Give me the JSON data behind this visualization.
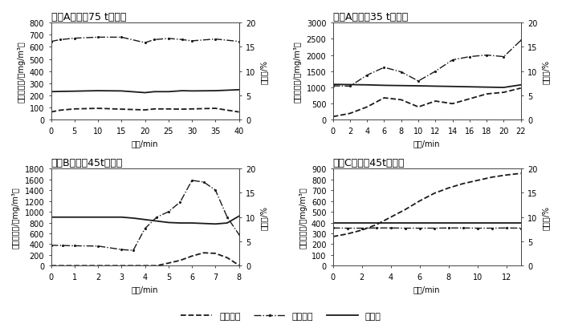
{
  "subplots": [
    {
      "title": "糖厂A数据（75 t锅炉）",
      "xlabel": "时间/min",
      "ylabel_left": "污染物浓度/（mg/m³）",
      "ylabel_right": "含氧量/%",
      "xlim": [
        0,
        40
      ],
      "ylim_left": [
        0,
        800
      ],
      "ylim_right": [
        0,
        20
      ],
      "yticks_left": [
        0,
        100,
        200,
        300,
        400,
        500,
        600,
        700,
        800
      ],
      "yticks_right": [
        0,
        5,
        10,
        15,
        20
      ],
      "xticks": [
        0,
        5,
        10,
        15,
        20,
        25,
        30,
        35,
        40
      ],
      "SO2_x": [
        0,
        2,
        5,
        10,
        15,
        20,
        22,
        25,
        28,
        30,
        35,
        40
      ],
      "SO2_y": [
        65,
        80,
        90,
        95,
        88,
        82,
        90,
        90,
        88,
        90,
        95,
        65
      ],
      "CO_x": [
        0,
        2,
        5,
        10,
        15,
        20,
        22,
        25,
        28,
        30,
        35,
        40
      ],
      "CO_y": [
        645,
        660,
        672,
        680,
        680,
        635,
        660,
        670,
        660,
        650,
        665,
        645
      ],
      "O2_x": [
        0,
        2,
        5,
        10,
        15,
        20,
        22,
        25,
        28,
        30,
        35,
        40
      ],
      "O2_y": [
        5.8,
        5.85,
        5.9,
        6.0,
        5.95,
        5.6,
        5.8,
        5.8,
        6.0,
        5.95,
        6.0,
        6.2
      ]
    },
    {
      "title": "糖厂A数据（35 t锅炉）",
      "xlabel": "时间/min",
      "ylabel_left": "污染物浓度/（mg/m³）",
      "ylabel_right": "含氧量/%",
      "xlim": [
        0,
        22
      ],
      "ylim_left": [
        0,
        3000
      ],
      "ylim_right": [
        0,
        20
      ],
      "yticks_left": [
        0,
        500,
        1000,
        1500,
        2000,
        2500,
        3000
      ],
      "yticks_right": [
        0,
        5,
        10,
        15,
        20
      ],
      "xticks": [
        0,
        2,
        4,
        6,
        8,
        10,
        12,
        14,
        16,
        18,
        20,
        22
      ],
      "SO2_x": [
        0,
        2,
        4,
        6,
        8,
        10,
        12,
        14,
        16,
        18,
        20,
        22
      ],
      "SO2_y": [
        100,
        200,
        400,
        680,
        620,
        400,
        580,
        500,
        650,
        800,
        850,
        980
      ],
      "CO_x": [
        0,
        2,
        4,
        6,
        8,
        10,
        12,
        14,
        16,
        18,
        20,
        22
      ],
      "CO_y": [
        1050,
        1040,
        1380,
        1620,
        1480,
        1200,
        1500,
        1850,
        1950,
        2000,
        1950,
        2450
      ],
      "O2_x": [
        0,
        2,
        4,
        6,
        8,
        10,
        12,
        14,
        16,
        18,
        20,
        22
      ],
      "O2_y": [
        7.3,
        7.25,
        7.2,
        7.1,
        7.05,
        7.0,
        6.93,
        6.87,
        6.8,
        6.73,
        6.67,
        7.2
      ]
    },
    {
      "title": "糖厂B数据（45t锅炉）",
      "xlabel": "时间/min",
      "ylabel_left": "污染物浓度/（mg/m³）",
      "ylabel_right": "含氧量/%",
      "xlim": [
        0,
        8
      ],
      "ylim_left": [
        0,
        1800
      ],
      "ylim_right": [
        0,
        20
      ],
      "yticks_left": [
        0,
        200,
        400,
        600,
        800,
        1000,
        1200,
        1400,
        1600,
        1800
      ],
      "yticks_right": [
        0,
        5,
        10,
        15,
        20
      ],
      "xticks": [
        0,
        1,
        2,
        3,
        4,
        5,
        6,
        7,
        8
      ],
      "SO2_x": [
        0,
        0.5,
        1,
        2,
        3,
        3.5,
        4,
        4.5,
        5,
        5.5,
        6,
        6.5,
        7,
        7.5,
        8
      ],
      "SO2_y": [
        2,
        2,
        2,
        2,
        2,
        2,
        2,
        2,
        50,
        100,
        180,
        240,
        230,
        150,
        10
      ],
      "CO_x": [
        0,
        0.5,
        1,
        2,
        3,
        3.5,
        4,
        4.5,
        5,
        5.5,
        6,
        6.5,
        7,
        7.5,
        8
      ],
      "CO_y": [
        380,
        375,
        370,
        365,
        300,
        285,
        690,
        900,
        1000,
        1180,
        1580,
        1550,
        1400,
        900,
        580
      ],
      "O2_x": [
        0,
        0.5,
        1,
        2,
        3,
        3.5,
        4,
        4.5,
        5,
        5.5,
        6,
        6.5,
        7,
        7.5,
        8
      ],
      "O2_y": [
        10.0,
        10.0,
        10.0,
        10.0,
        10.0,
        9.8,
        9.5,
        9.2,
        8.9,
        8.8,
        8.8,
        8.7,
        8.6,
        8.8,
        10.2
      ]
    },
    {
      "title": "糖厂C数据（45t锅炉）",
      "xlabel": "时间/min",
      "ylabel_left": "污染物浓度/（mg/m³）",
      "ylabel_right": "含氧量/%",
      "xlim": [
        0,
        13
      ],
      "ylim_left": [
        0,
        900
      ],
      "ylim_right": [
        0,
        20
      ],
      "yticks_left": [
        0,
        100,
        200,
        300,
        400,
        500,
        600,
        700,
        800,
        900
      ],
      "yticks_right": [
        0,
        5,
        10,
        15,
        20
      ],
      "xticks": [
        0,
        2,
        4,
        6,
        8,
        10,
        12
      ],
      "SO2_x": [
        0,
        1,
        2,
        3,
        4,
        5,
        6,
        7,
        8,
        9,
        10,
        11,
        12,
        13
      ],
      "SO2_y": [
        270,
        295,
        330,
        380,
        450,
        520,
        600,
        670,
        720,
        760,
        790,
        820,
        840,
        855
      ],
      "CO_x": [
        0,
        1,
        2,
        3,
        4,
        5,
        6,
        7,
        8,
        9,
        10,
        11,
        12,
        13
      ],
      "CO_y": [
        350,
        348,
        348,
        350,
        350,
        348,
        348,
        348,
        350,
        350,
        348,
        348,
        350,
        348
      ],
      "O2_x": [
        0,
        1,
        2,
        3,
        4,
        5,
        6,
        7,
        8,
        9,
        10,
        11,
        12,
        13
      ],
      "O2_y": [
        8.75,
        8.75,
        8.75,
        8.75,
        8.75,
        8.75,
        8.75,
        8.75,
        8.75,
        8.75,
        8.75,
        8.75,
        8.75,
        8.75
      ]
    }
  ],
  "legend_labels": [
    "二氧化硫",
    "一氧化碳",
    "含氧量"
  ],
  "line_color": "#1a1a1a",
  "font_size_title": 9,
  "font_size_label": 7,
  "font_size_tick": 7,
  "font_size_legend": 8
}
